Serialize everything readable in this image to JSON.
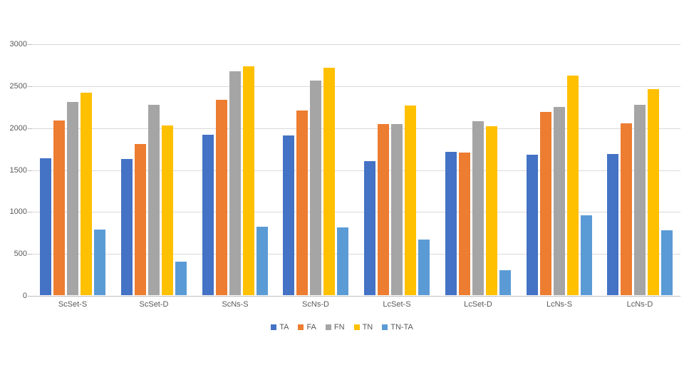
{
  "chart_data": {
    "type": "bar",
    "title": "",
    "xlabel": "",
    "ylabel": "",
    "categories": [
      "ScSet-S",
      "ScSet-D",
      "ScNs-S",
      "ScNs-D",
      "LcSet-S",
      "LcSet-D",
      "LcNs-S",
      "LcNs-D"
    ],
    "series": [
      {
        "name": "TA",
        "color": "#4472C4",
        "values": [
          1630,
          1620,
          1915,
          1905,
          1595,
          1710,
          1670,
          1685
        ]
      },
      {
        "name": "FA",
        "color": "#ED7D31",
        "values": [
          2080,
          1800,
          2330,
          2200,
          2040,
          1700,
          2180,
          2050
        ]
      },
      {
        "name": "FN",
        "color": "#A5A5A5",
        "values": [
          2300,
          2270,
          2665,
          2555,
          2040,
          2070,
          2240,
          2270
        ]
      },
      {
        "name": "TN",
        "color": "#FFC000",
        "values": [
          2410,
          2020,
          2730,
          2710,
          2260,
          2010,
          2620,
          2455
        ]
      },
      {
        "name": "TN-TA",
        "color": "#5B9BD5",
        "values": [
          780,
          400,
          815,
          805,
          665,
          300,
          950,
          770
        ]
      }
    ],
    "ylim": [
      0,
      3000
    ],
    "yticks": [
      0,
      500,
      1000,
      1500,
      2000,
      2500,
      3000
    ],
    "grid": true,
    "legend_position": "bottom",
    "colors": {
      "gridline": "#d9d9d9",
      "axis_line": "#bfbfbf",
      "label_text": "#595959",
      "background": "#ffffff"
    }
  }
}
